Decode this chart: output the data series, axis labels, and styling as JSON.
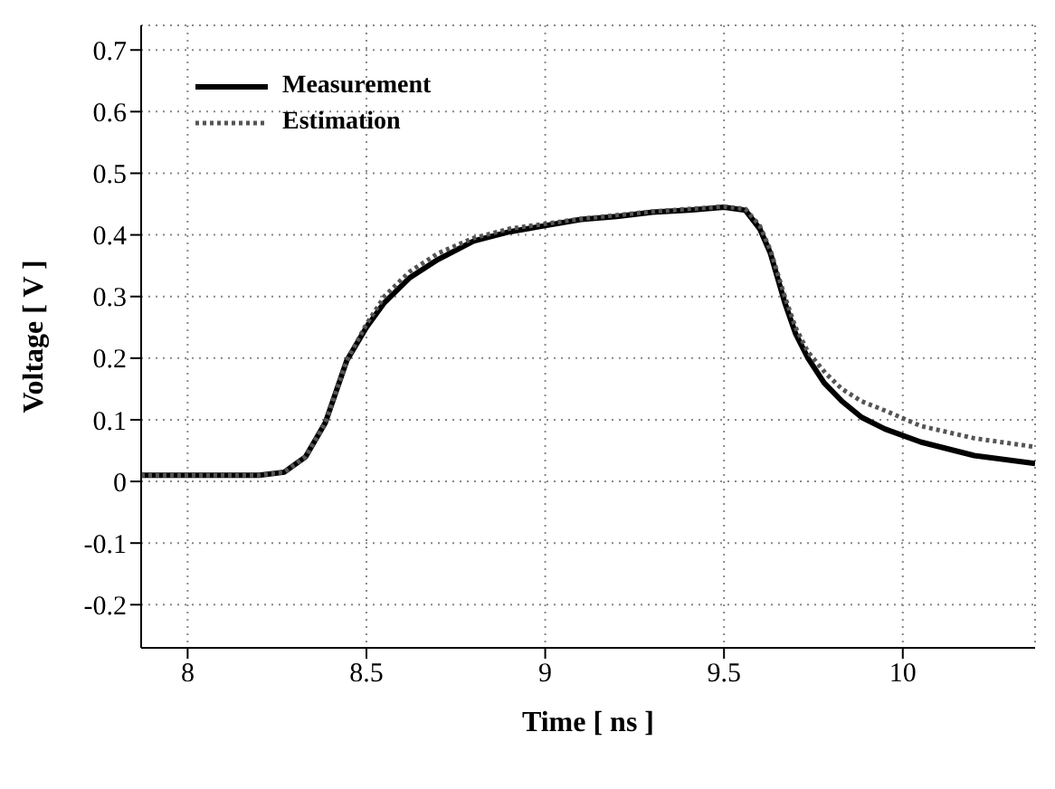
{
  "chart_data": {
    "type": "line",
    "xlabel": "Time [ ns ]",
    "ylabel": "Voltage [ V ]",
    "xlim": [
      7.87,
      10.37
    ],
    "xticks": [
      8,
      8.5,
      9,
      9.5,
      10
    ],
    "ylim": [
      -0.27,
      0.74
    ],
    "yticks": [
      -0.2,
      -0.1,
      0,
      0.1,
      0.2,
      0.3,
      0.4,
      0.5,
      0.6,
      0.7
    ],
    "grid": true,
    "legend": "top left",
    "marker": "none",
    "series": [
      {
        "name": "Measurement",
        "color": "#000000",
        "line_style": "solid",
        "x": [
          7.87,
          8.2,
          8.27,
          8.33,
          8.385,
          8.445,
          8.5,
          8.55,
          8.62,
          8.7,
          8.8,
          8.9,
          9.0,
          9.1,
          9.2,
          9.3,
          9.4,
          9.5,
          9.56,
          9.6,
          9.63,
          9.67,
          9.7,
          9.735,
          9.78,
          9.83,
          9.885,
          9.95,
          10.05,
          10.2,
          10.37
        ],
        "values": [
          0.01,
          0.01,
          0.015,
          0.04,
          0.095,
          0.196,
          0.25,
          0.29,
          0.33,
          0.36,
          0.39,
          0.405,
          0.415,
          0.425,
          0.43,
          0.437,
          0.44,
          0.445,
          0.44,
          0.41,
          0.37,
          0.29,
          0.24,
          0.2,
          0.16,
          0.13,
          0.104,
          0.085,
          0.064,
          0.042,
          0.029
        ]
      },
      {
        "name": "Estimation",
        "color": "#555555",
        "line_style": "dotted",
        "x": [
          7.87,
          8.2,
          8.27,
          8.33,
          8.385,
          8.445,
          8.5,
          8.55,
          8.62,
          8.7,
          8.8,
          8.9,
          9.0,
          9.1,
          9.2,
          9.3,
          9.4,
          9.5,
          9.56,
          9.6,
          9.63,
          9.67,
          9.7,
          9.735,
          9.785,
          9.83,
          9.885,
          9.95,
          10.05,
          10.2,
          10.37
        ],
        "values": [
          0.01,
          0.01,
          0.015,
          0.04,
          0.095,
          0.196,
          0.255,
          0.3,
          0.34,
          0.37,
          0.395,
          0.41,
          0.418,
          0.426,
          0.432,
          0.438,
          0.442,
          0.446,
          0.442,
          0.415,
          0.375,
          0.3,
          0.25,
          0.21,
          0.175,
          0.15,
          0.13,
          0.115,
          0.09,
          0.07,
          0.056
        ]
      }
    ]
  }
}
